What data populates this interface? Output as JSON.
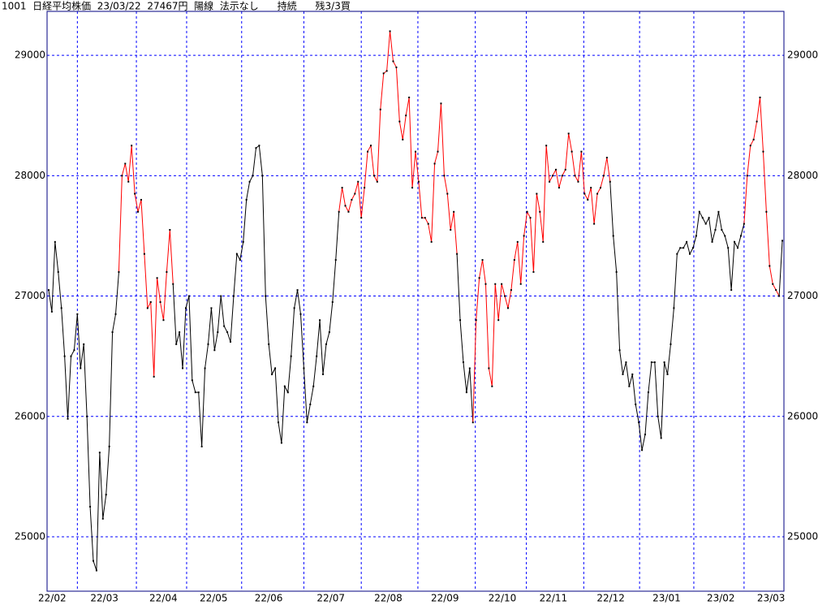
{
  "chart_data": {
    "type": "line",
    "title": "1001  日経平均株価  23/03/22  27467円  陽線  法示なし      持続      残3/3買",
    "xlim": [
      -0.5,
      230.5
    ],
    "xticks": [
      {
        "value": -0.5,
        "label": "22/02"
      },
      {
        "value": 9,
        "label": "22/03"
      },
      {
        "value": 27.5,
        "label": "22/04"
      },
      {
        "value": 43.25,
        "label": "22/05"
      },
      {
        "value": 60.5,
        "label": "22/06"
      },
      {
        "value": 80,
        "label": "22/07"
      },
      {
        "value": 98,
        "label": "22/08"
      },
      {
        "value": 115.75,
        "label": "22/09"
      },
      {
        "value": 133.75,
        "label": "22/10"
      },
      {
        "value": 149.75,
        "label": "22/11"
      },
      {
        "value": 167.75,
        "label": "22/12"
      },
      {
        "value": 185.25,
        "label": "23/01"
      },
      {
        "value": 202.25,
        "label": "23/02"
      },
      {
        "value": 218,
        "label": "23/03"
      }
    ],
    "ylim": [
      24548,
      29365
    ],
    "yticks": [
      25000,
      26000,
      27000,
      28000,
      29000
    ],
    "grid": true,
    "grid_color": "#0000ff",
    "frame_color": "#000080",
    "marker_color": "#000000",
    "series": [
      {
        "color": "#000000",
        "values": [
          27050,
          26870,
          27450,
          27200,
          26900,
          26500,
          25980,
          26500,
          26550,
          26850,
          26400,
          26600,
          26000,
          25250,
          24800,
          24720,
          25700,
          25150,
          25350,
          25750,
          26700,
          26850,
          27200,
          null,
          null,
          null,
          null,
          null,
          null,
          null,
          null,
          null,
          null,
          null,
          null,
          null,
          null,
          null,
          null,
          27100,
          26600,
          26700,
          26400,
          26900,
          27000,
          26300,
          26200,
          26200,
          25750,
          26400,
          26600,
          26900,
          26550,
          26700,
          27000,
          26750,
          26700,
          26620,
          27000,
          27350,
          27300,
          27450,
          27800,
          27950,
          28000,
          28230,
          28250,
          28000,
          27000,
          26600,
          26350,
          26400,
          25950,
          25780,
          26250,
          26200,
          26500,
          26900,
          27050,
          26850,
          26400,
          25950,
          26100,
          26250,
          26500,
          26800,
          26350,
          26600,
          26700,
          26950,
          27300,
          27700,
          null,
          null,
          null,
          null,
          null,
          null,
          null,
          null,
          null,
          null,
          null,
          null,
          null,
          null,
          null,
          null,
          null,
          null,
          null,
          null,
          null,
          null,
          null,
          null,
          null,
          null,
          null,
          null,
          null,
          null,
          null,
          null,
          null,
          null,
          null,
          null,
          27350,
          26800,
          26450,
          26200,
          26400,
          25950,
          null,
          null,
          null,
          null,
          null,
          null,
          null,
          null,
          null,
          null,
          null,
          null,
          null,
          null,
          null,
          null,
          null,
          null,
          null,
          null,
          null,
          null,
          null,
          null,
          null,
          null,
          null,
          null,
          null,
          null,
          null,
          null,
          null,
          null,
          null,
          null,
          null,
          null,
          null,
          null,
          null,
          null,
          27950,
          27500,
          27200,
          26550,
          26350,
          26450,
          26250,
          26350,
          26100,
          25950,
          25720,
          25850,
          26200,
          26450,
          26450,
          26000,
          25820,
          26450,
          26350,
          26600,
          26900,
          27350,
          27400,
          27400,
          27450,
          27350,
          27400,
          27500,
          27700,
          27650,
          27600,
          27650,
          27450,
          27550,
          27700,
          27550,
          27500,
          27400,
          27050,
          27450,
          27400,
          27500,
          27600,
          null,
          null,
          null,
          null,
          null,
          null,
          null,
          null,
          null,
          null,
          27000,
          27460
        ]
      },
      {
        "color": "#ff0000",
        "values": [
          null,
          null,
          null,
          null,
          null,
          null,
          null,
          null,
          null,
          null,
          null,
          null,
          null,
          null,
          null,
          null,
          null,
          null,
          null,
          null,
          null,
          null,
          27200,
          28000,
          28100,
          27950,
          28250,
          27850,
          27700,
          27800,
          27350,
          26900,
          26950,
          26330,
          27150,
          26950,
          26800,
          27200,
          27550,
          27100,
          null,
          null,
          null,
          null,
          null,
          null,
          null,
          null,
          null,
          null,
          null,
          null,
          null,
          null,
          null,
          null,
          null,
          null,
          null,
          null,
          null,
          null,
          null,
          null,
          null,
          null,
          null,
          null,
          null,
          null,
          null,
          null,
          null,
          null,
          null,
          null,
          null,
          null,
          null,
          null,
          null,
          null,
          null,
          null,
          null,
          null,
          null,
          null,
          null,
          null,
          null,
          27700,
          27900,
          27750,
          27700,
          27800,
          27850,
          27950,
          27650,
          27900,
          28200,
          28250,
          28000,
          27950,
          28550,
          28850,
          28870,
          29200,
          28950,
          28900,
          28450,
          28300,
          28500,
          28650,
          27900,
          28200,
          27950,
          27650,
          27650,
          27600,
          27450,
          28100,
          28200,
          28600,
          28000,
          27850,
          27550,
          27700,
          27350,
          null,
          null,
          null,
          null,
          25950,
          26800,
          27150,
          27300,
          27100,
          26400,
          26250,
          27100,
          26800,
          27100,
          27000,
          26900,
          27050,
          27300,
          27450,
          27100,
          27500,
          27700,
          27650,
          27200,
          27850,
          27700,
          27450,
          28250,
          27950,
          28000,
          28050,
          27900,
          28000,
          28050,
          28350,
          28200,
          28000,
          27950,
          28200,
          27850,
          27800,
          27900,
          27600,
          27850,
          27900,
          28000,
          28150,
          27950,
          null,
          null,
          null,
          null,
          null,
          null,
          null,
          null,
          null,
          null,
          null,
          null,
          null,
          null,
          null,
          null,
          null,
          null,
          null,
          null,
          null,
          null,
          null,
          null,
          null,
          null,
          null,
          null,
          null,
          null,
          null,
          null,
          null,
          null,
          null,
          null,
          null,
          null,
          null,
          null,
          null,
          27600,
          28000,
          28250,
          28300,
          28450,
          28650,
          28200,
          27700,
          27250,
          27100,
          27050,
          27000,
          null
        ]
      }
    ]
  }
}
